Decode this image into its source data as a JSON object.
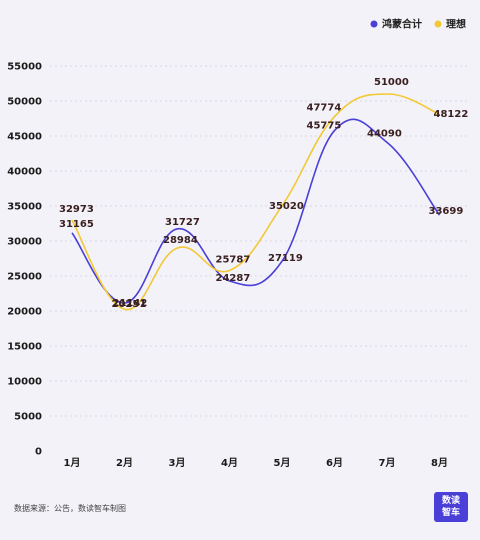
{
  "chart_data": {
    "type": "line",
    "categories": [
      "1月",
      "2月",
      "3月",
      "4月",
      "5月",
      "6月",
      "7月",
      "8月"
    ],
    "series": [
      {
        "name": "鸿蒙合计",
        "color": "#4a3fd6",
        "values": [
          31165,
          21142,
          31727,
          24287,
          27119,
          45775,
          44090,
          33699
        ]
      },
      {
        "name": "理想",
        "color": "#f2c935",
        "values": [
          32973,
          20251,
          28984,
          25787,
          35020,
          47774,
          51000,
          48122
        ]
      }
    ],
    "ylim": [
      0,
      55000
    ],
    "yticks": [
      0,
      5000,
      10000,
      15000,
      20000,
      25000,
      30000,
      35000,
      40000,
      45000,
      50000,
      55000
    ],
    "grid": true,
    "legend": "top-right",
    "smooth": true,
    "data_labels": true
  },
  "footer": {
    "source": "数据来源：公告，数读智车制图"
  },
  "logo": {
    "line1": "数读",
    "line2": "智车"
  }
}
